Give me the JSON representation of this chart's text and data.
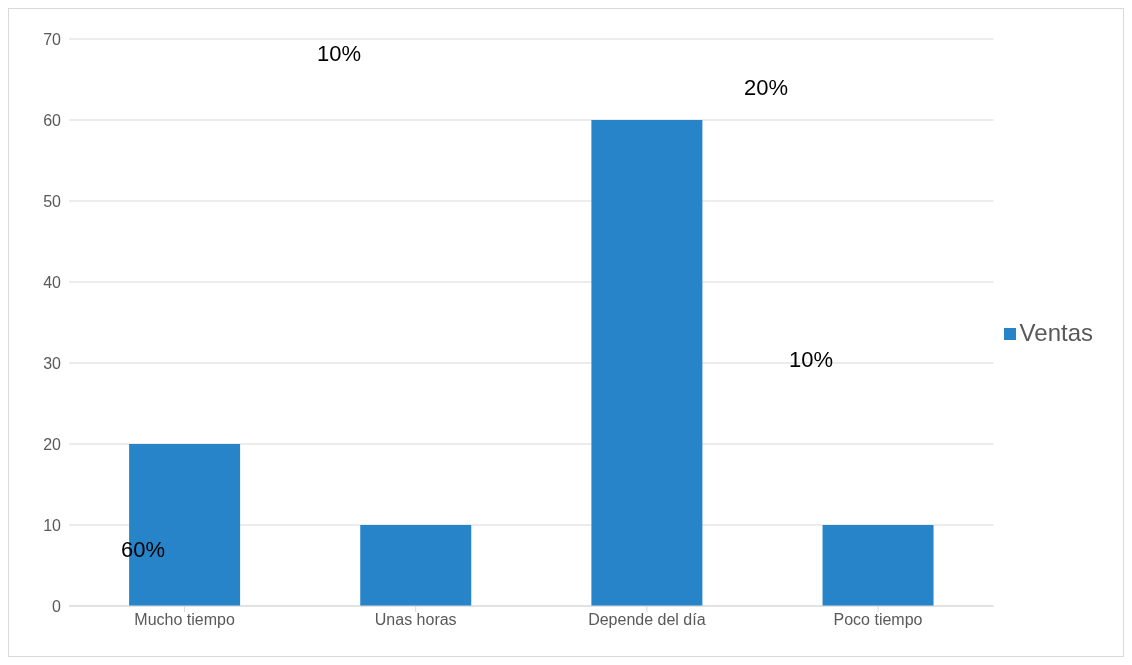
{
  "chart_data": {
    "type": "bar",
    "categories": [
      "Mucho tiempo",
      "Unas horas",
      "Depende del día",
      "Poco tiempo"
    ],
    "series": [
      {
        "name": "Ventas",
        "color": "#2884c8",
        "values": [
          20,
          10,
          60,
          10
        ]
      }
    ],
    "ylim": [
      0,
      70
    ],
    "yticks": [
      0,
      10,
      20,
      30,
      40,
      50,
      60,
      70
    ],
    "grid": "y",
    "legend": "right",
    "annotations": [
      "60%",
      "10%",
      "20%",
      "10%"
    ]
  }
}
